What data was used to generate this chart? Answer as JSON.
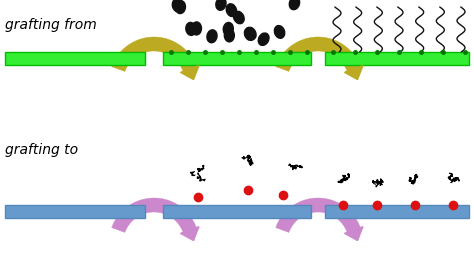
{
  "bg_color": "#ffffff",
  "grafting_from_label": "grafting from",
  "grafting_to_label": "grafting to",
  "label_fontsize": 10,
  "label_color": "#000000",
  "green_bar_color": "#33ee33",
  "green_bar_edge": "#00bb00",
  "blue_bar_color": "#6699cc",
  "blue_bar_edge": "#5588bb",
  "arrow_from_color": "#bbaa22",
  "arrow_to_color": "#cc88cc",
  "red_dot_color": "#dd1111",
  "initiator_color": "#007700",
  "monomer_color": "#111111",
  "chain_color": "#111111"
}
